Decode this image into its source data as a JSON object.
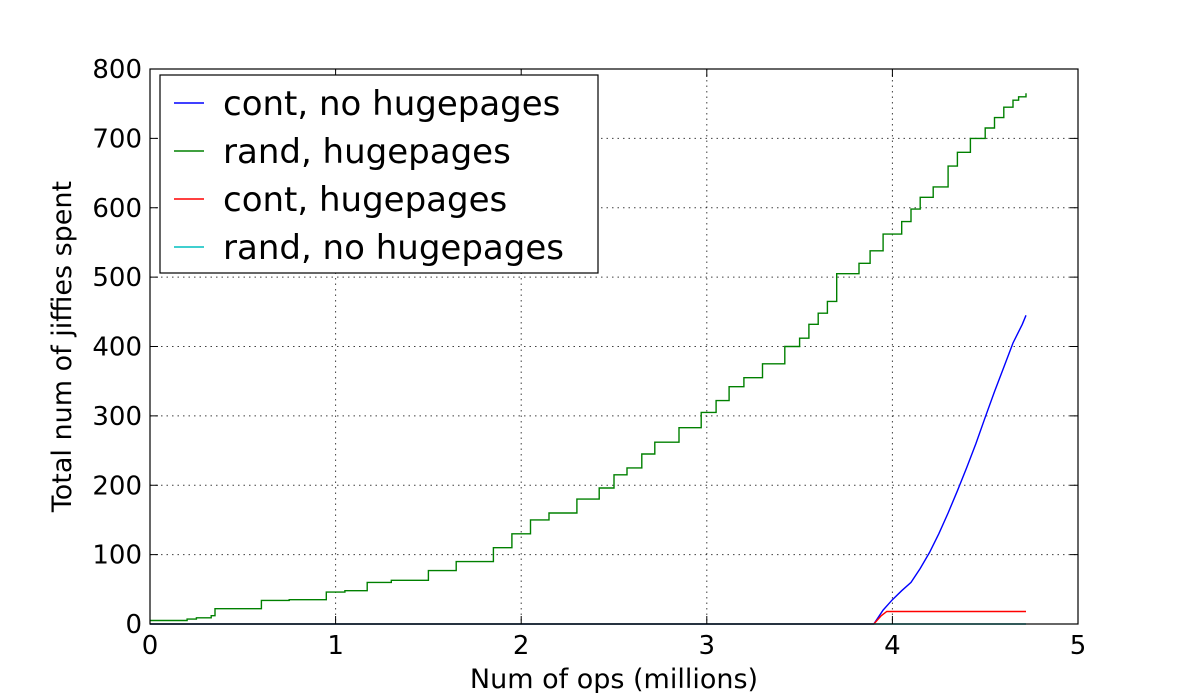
{
  "chart_data": {
    "type": "line",
    "title": "",
    "xlabel": "Num of ops (millions)",
    "ylabel": "Total num of jiffies spent",
    "xlim": [
      0,
      5
    ],
    "ylim": [
      0,
      800
    ],
    "xticks": [
      0,
      1,
      2,
      3,
      4,
      5
    ],
    "yticks": [
      0,
      100,
      200,
      300,
      400,
      500,
      600,
      700,
      800
    ],
    "grid": true,
    "legend_position": "top-left",
    "series": [
      {
        "name": "cont, no hugepages",
        "color": "#0000ff",
        "step": false,
        "x": [
          0,
          3.9,
          3.95,
          4.0,
          4.05,
          4.1,
          4.15,
          4.2,
          4.25,
          4.3,
          4.35,
          4.4,
          4.45,
          4.5,
          4.55,
          4.6,
          4.65,
          4.7,
          4.72
        ],
        "y": [
          0,
          0,
          20,
          35,
          48,
          60,
          80,
          103,
          130,
          160,
          192,
          225,
          260,
          298,
          335,
          370,
          405,
          432,
          445
        ]
      },
      {
        "name": "rand, hugepages",
        "color": "#008000",
        "step": true,
        "x": [
          0,
          0.15,
          0.2,
          0.25,
          0.33,
          0.35,
          0.6,
          0.75,
          0.95,
          1.05,
          1.17,
          1.3,
          1.5,
          1.65,
          1.85,
          1.95,
          2.05,
          2.15,
          2.3,
          2.42,
          2.5,
          2.57,
          2.65,
          2.72,
          2.85,
          2.97,
          3.05,
          3.12,
          3.2,
          3.3,
          3.42,
          3.5,
          3.55,
          3.6,
          3.65,
          3.7,
          3.82,
          3.88,
          3.95,
          4.05,
          4.1,
          4.15,
          4.22,
          4.3,
          4.35,
          4.42,
          4.5,
          4.55,
          4.6,
          4.65,
          4.68,
          4.72
        ],
        "y": [
          5,
          5,
          7,
          9,
          12,
          22,
          34,
          35,
          46,
          48,
          60,
          63,
          77,
          90,
          110,
          130,
          150,
          160,
          180,
          196,
          215,
          225,
          245,
          262,
          283,
          305,
          322,
          342,
          355,
          375,
          400,
          412,
          432,
          448,
          465,
          505,
          520,
          538,
          562,
          580,
          598,
          615,
          630,
          660,
          680,
          700,
          715,
          730,
          745,
          755,
          760,
          765
        ]
      },
      {
        "name": "cont, hugepages",
        "color": "#ff0000",
        "step": false,
        "x": [
          0,
          3.9,
          3.94,
          3.97,
          4.72
        ],
        "y": [
          0,
          0,
          12,
          18,
          18
        ]
      },
      {
        "name": "rand, no hugepages",
        "color": "#00bfbf",
        "step": false,
        "x": [
          0,
          4.72
        ],
        "y": [
          0,
          0
        ]
      }
    ]
  }
}
